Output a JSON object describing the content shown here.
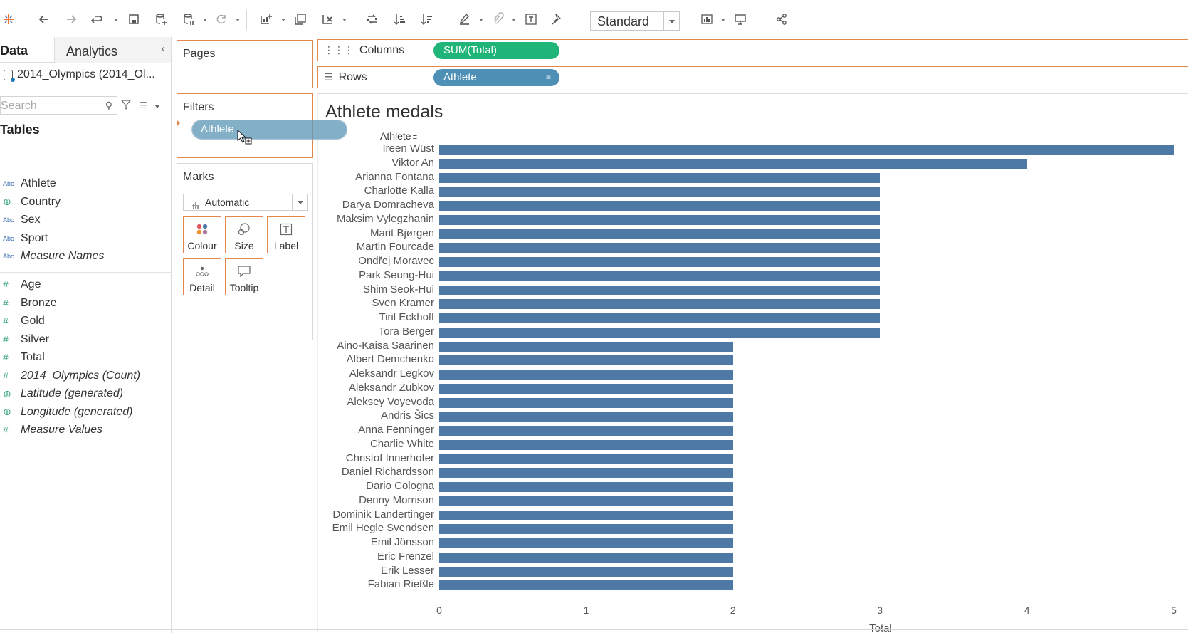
{
  "toolbar": {
    "standard_select": "Standard"
  },
  "data_pane": {
    "tab_data": "Data",
    "tab_analytics": "Analytics",
    "datasource": "2014_Olympics (2014_Ol...",
    "search_placeholder": "Search",
    "tables_heading": "Tables",
    "dimensions": [
      {
        "type": "Abc",
        "name": "Athlete",
        "italic": false
      },
      {
        "type": "geo",
        "name": "Country",
        "italic": false
      },
      {
        "type": "Abc",
        "name": "Sex",
        "italic": false
      },
      {
        "type": "Abc",
        "name": "Sport",
        "italic": false
      },
      {
        "type": "Abc",
        "name": "Measure Names",
        "italic": true
      }
    ],
    "measures": [
      {
        "type": "#",
        "name": "Age",
        "italic": false
      },
      {
        "type": "#",
        "name": "Bronze",
        "italic": false
      },
      {
        "type": "#",
        "name": "Gold",
        "italic": false
      },
      {
        "type": "#",
        "name": "Silver",
        "italic": false
      },
      {
        "type": "#",
        "name": "Total",
        "italic": false
      },
      {
        "type": "#",
        "name": "2014_Olympics (Count)",
        "italic": true
      },
      {
        "type": "geo",
        "name": "Latitude (generated)",
        "italic": true
      },
      {
        "type": "geo",
        "name": "Longitude (generated)",
        "italic": true
      },
      {
        "type": "#",
        "name": "Measure Values",
        "italic": true
      }
    ]
  },
  "cards": {
    "pages": "Pages",
    "filters": "Filters",
    "marks": "Marks",
    "marks_type": "Automatic",
    "buttons": [
      "Colour",
      "Size",
      "Label",
      "Detail",
      "Tooltip"
    ]
  },
  "shelves": {
    "columns_label": "Columns",
    "columns_pill": "SUM(Total)",
    "rows_label": "Rows",
    "rows_pill": "Athlete"
  },
  "drag_pill": "Athlete",
  "colors": {
    "bar": "#4e79a7",
    "green_pill": "#1fb579",
    "blue_pill": "#4e90b5",
    "shelf_border": "#e0884e"
  },
  "view": {
    "title": "Athlete medals",
    "row_header": "Athlete"
  },
  "chart_data": {
    "type": "bar",
    "orientation": "horizontal",
    "title": "Athlete medals",
    "xlabel": "Total",
    "ylabel": "Athlete",
    "xlim": [
      0,
      5
    ],
    "x_ticks": [
      "0",
      "1",
      "2",
      "3",
      "4",
      "5"
    ],
    "categories": [
      "Ireen Wüst",
      "Viktor An",
      "Arianna Fontana",
      "Charlotte Kalla",
      "Darya Domracheva",
      "Maksim Vylegzhanin",
      "Marit Bjørgen",
      "Martin Fourcade",
      "Ondřej Moravec",
      "Park Seung-Hui",
      "Shim Seok-Hui",
      "Sven Kramer",
      "Tiril Eckhoff",
      "Tora Berger",
      "Aino-Kaisa Saarinen",
      "Albert Demchenko",
      "Aleksandr Legkov",
      "Aleksandr Zubkov",
      "Aleksey Voyevoda",
      "Andris Šics",
      "Anna Fenninger",
      "Charlie White",
      "Christof Innerhofer",
      "Daniel Richardsson",
      "Dario Cologna",
      "Denny Morrison",
      "Dominik Landertinger",
      "Emil Hegle Svendsen",
      "Emil Jönsson",
      "Eric Frenzel",
      "Erik Lesser",
      "Fabian Rießle"
    ],
    "values": [
      5,
      4,
      3,
      3,
      3,
      3,
      3,
      3,
      3,
      3,
      3,
      3,
      3,
      3,
      2,
      2,
      2,
      2,
      2,
      2,
      2,
      2,
      2,
      2,
      2,
      2,
      2,
      2,
      2,
      2,
      2,
      2
    ]
  }
}
